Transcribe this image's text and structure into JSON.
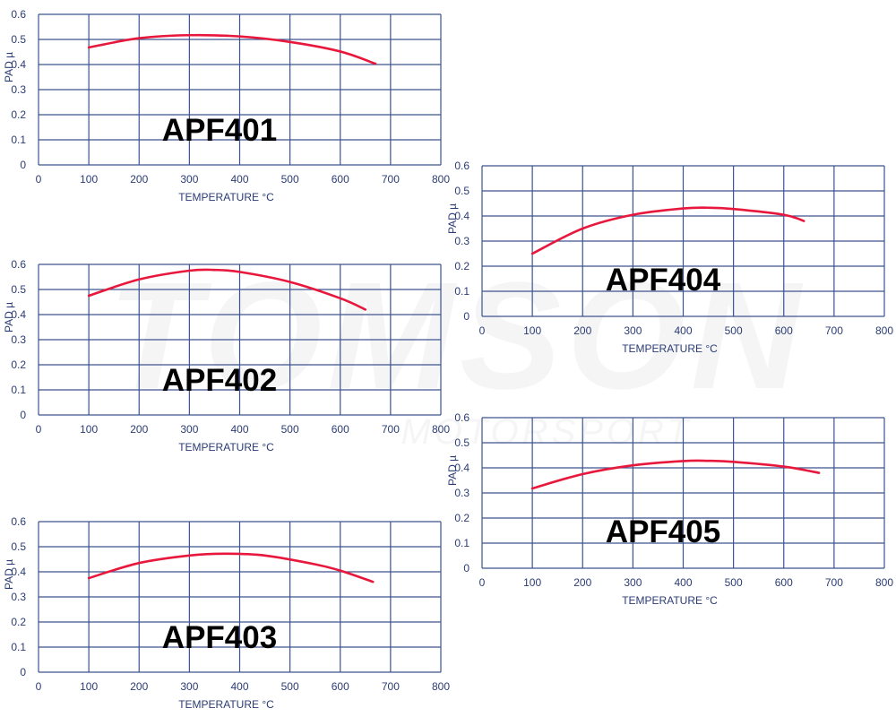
{
  "watermark": {
    "main": "TOMSON",
    "sub": "MOTORSPORT",
    "tm": "TM"
  },
  "colors": {
    "grid": "#3d5391",
    "text": "#2b3c74",
    "curve": "#e8173c",
    "label": "#000000"
  },
  "chart_data": [
    {
      "type": "line",
      "label": "APF401",
      "xlabel": "TEMPERATURE °C",
      "ylabel": "PAD µ",
      "xlim": [
        0,
        800
      ],
      "ylim": [
        0,
        0.6
      ],
      "grid": true,
      "xticks": [
        "0",
        "100",
        "200",
        "300",
        "400",
        "500",
        "600",
        "700",
        "800"
      ],
      "yticks": [
        "0",
        "0.1",
        "0.2",
        "0.3",
        "0.4",
        "0.5",
        "0.6"
      ],
      "x": [
        100,
        200,
        300,
        400,
        500,
        600,
        670
      ],
      "y": [
        0.468,
        0.505,
        0.517,
        0.512,
        0.49,
        0.452,
        0.403
      ]
    },
    {
      "type": "line",
      "label": "APF402",
      "xlabel": "TEMPERATURE °C",
      "ylabel": "PAD µ",
      "xlim": [
        0,
        800
      ],
      "ylim": [
        0,
        0.6
      ],
      "grid": true,
      "xticks": [
        "0",
        "100",
        "200",
        "300",
        "400",
        "500",
        "600",
        "700",
        "800"
      ],
      "yticks": [
        "0",
        "0.1",
        "0.2",
        "0.3",
        "0.4",
        "0.5",
        "0.6"
      ],
      "x": [
        100,
        200,
        300,
        350,
        400,
        500,
        600,
        650
      ],
      "y": [
        0.475,
        0.54,
        0.575,
        0.578,
        0.57,
        0.53,
        0.465,
        0.42
      ]
    },
    {
      "type": "line",
      "label": "APF403",
      "xlabel": "TEMPERATURE °C",
      "ylabel": "PAD µ",
      "xlim": [
        0,
        800
      ],
      "ylim": [
        0,
        0.6
      ],
      "grid": true,
      "xticks": [
        "0",
        "100",
        "200",
        "300",
        "400",
        "500",
        "600",
        "700",
        "800"
      ],
      "yticks": [
        "0",
        "0.1",
        "0.2",
        "0.3",
        "0.4",
        "0.5",
        "0.6"
      ],
      "x": [
        100,
        200,
        300,
        370,
        450,
        550,
        600,
        665
      ],
      "y": [
        0.375,
        0.435,
        0.465,
        0.472,
        0.465,
        0.43,
        0.405,
        0.36
      ]
    },
    {
      "type": "line",
      "label": "APF404",
      "xlabel": "TEMPERATURE °C",
      "ylabel": "PAD µ",
      "xlim": [
        0,
        800
      ],
      "ylim": [
        0,
        0.6
      ],
      "grid": true,
      "xticks": [
        "0",
        "100",
        "200",
        "300",
        "400",
        "500",
        "600",
        "700",
        "800"
      ],
      "yticks": [
        "0",
        "0.1",
        "0.2",
        "0.3",
        "0.4",
        "0.5",
        "0.6"
      ],
      "x": [
        100,
        200,
        300,
        400,
        450,
        500,
        600,
        640
      ],
      "y": [
        0.25,
        0.35,
        0.405,
        0.43,
        0.433,
        0.428,
        0.405,
        0.38
      ]
    },
    {
      "type": "line",
      "label": "APF405",
      "xlabel": "TEMPERATURE °C",
      "ylabel": "PAD µ",
      "xlim": [
        0,
        800
      ],
      "ylim": [
        0,
        0.6
      ],
      "grid": true,
      "xticks": [
        "0",
        "100",
        "200",
        "300",
        "400",
        "500",
        "600",
        "700",
        "800"
      ],
      "yticks": [
        "0",
        "0.1",
        "0.2",
        "0.3",
        "0.4",
        "0.5",
        "0.6"
      ],
      "x": [
        100,
        200,
        300,
        400,
        450,
        500,
        600,
        670
      ],
      "y": [
        0.318,
        0.375,
        0.41,
        0.427,
        0.428,
        0.424,
        0.405,
        0.38
      ]
    }
  ]
}
